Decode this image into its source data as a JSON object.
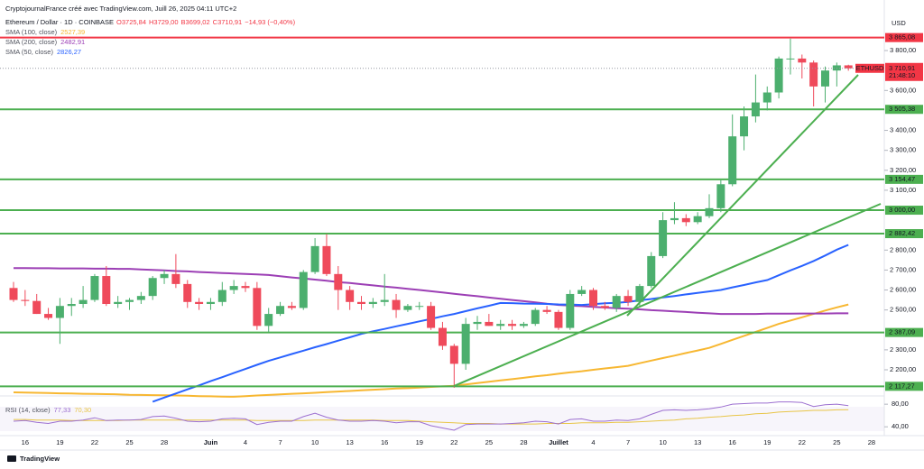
{
  "chart_data": {
    "type": "candlestick",
    "title": "CryptojournalFrance créé avec TradingView.com, Juill 26, 2025 04:11 UTC+2",
    "symbol": "Ethereum / Dollar · 1D · COINBASE",
    "ohlc_labels": [
      "O3725,84",
      "H3729,00",
      "B3699,02",
      "C3710,91",
      "−14,93 (−0,40%)"
    ],
    "currency": "USD",
    "footer": "TradingView",
    "up_color": "#4caf6e",
    "down_color": "#ef4a5b",
    "categories": [
      null,
      "16",
      null,
      null,
      "19",
      null,
      null,
      "22",
      null,
      null,
      "25",
      null,
      null,
      "28",
      null,
      null,
      null,
      "Juin",
      null,
      null,
      "4",
      null,
      null,
      "7",
      null,
      null,
      "10",
      null,
      null,
      "13",
      null,
      null,
      "16",
      null,
      null,
      "19",
      null,
      null,
      "22",
      null,
      null,
      "25",
      null,
      null,
      "28",
      null,
      null,
      "Juillet",
      null,
      null,
      "4",
      null,
      null,
      "7",
      null,
      null,
      "10",
      null,
      null,
      "13",
      null,
      null,
      "16",
      null,
      null,
      "19",
      null,
      null,
      "22",
      null,
      null,
      "25",
      null,
      null,
      "28"
    ],
    "open": [
      2610,
      2550,
      2545,
      2480,
      2460,
      2520,
      2530,
      2550,
      2670,
      2530,
      2540,
      2550,
      2570,
      2660,
      2680,
      2630,
      2540,
      2530,
      2540,
      2600,
      2620,
      2610,
      2420,
      2480,
      2520,
      2510,
      2690,
      2820,
      2680,
      2600,
      2540,
      2530,
      2540,
      2550,
      2500,
      2520,
      2520,
      2410,
      2320,
      2230,
      2430,
      2440,
      2420,
      2430,
      2420,
      2430,
      2500,
      2490,
      2410,
      2580,
      2600,
      2520,
      2510,
      2570,
      2540,
      2620,
      2770,
      2950,
      2960,
      2940,
      2970,
      3010,
      3130,
      3370,
      3470,
      3540,
      3590,
      3760,
      3760,
      3740,
      3620,
      3700,
      3725.84,
      null,
      null
    ],
    "high": [
      2640,
      2600,
      2580,
      2510,
      2560,
      2560,
      2620,
      2680,
      2720,
      2570,
      2560,
      2590,
      2670,
      2700,
      2780,
      2650,
      2560,
      2560,
      2640,
      2650,
      2640,
      2640,
      2510,
      2540,
      2540,
      2700,
      2860,
      2880,
      2720,
      2620,
      2570,
      2560,
      2680,
      2580,
      2530,
      2540,
      2540,
      2440,
      2330,
      2460,
      2470,
      2480,
      2450,
      2450,
      2440,
      2510,
      2520,
      2500,
      2600,
      2620,
      2610,
      2540,
      2580,
      2600,
      2630,
      2790,
      2990,
      3040,
      2980,
      2990,
      3080,
      3150,
      3480,
      3520,
      3680,
      3620,
      3770,
      3860,
      3780,
      3750,
      3720,
      3740,
      3729,
      null,
      null
    ],
    "low": [
      2540,
      2520,
      2480,
      2450,
      2330,
      2470,
      2510,
      2540,
      2520,
      2510,
      2500,
      2530,
      2550,
      2630,
      2610,
      2510,
      2500,
      2500,
      2520,
      2580,
      2590,
      2400,
      2390,
      2470,
      2500,
      2500,
      2680,
      2670,
      2500,
      2500,
      2500,
      2510,
      2520,
      2460,
      2490,
      2500,
      2400,
      2300,
      2110,
      2200,
      2400,
      2420,
      2400,
      2400,
      2410,
      2420,
      2480,
      2400,
      2400,
      2570,
      2500,
      2500,
      2490,
      2520,
      2520,
      2610,
      2760,
      2930,
      2920,
      2930,
      2960,
      2990,
      3120,
      3300,
      3440,
      3500,
      3560,
      3680,
      3660,
      3520,
      3540,
      3620,
      3699.02,
      null,
      null
    ],
    "close": [
      2550,
      2545,
      2480,
      2460,
      2520,
      2530,
      2550,
      2670,
      2530,
      2540,
      2550,
      2570,
      2660,
      2680,
      2630,
      2540,
      2530,
      2540,
      2600,
      2620,
      2610,
      2420,
      2480,
      2520,
      2510,
      2690,
      2820,
      2680,
      2600,
      2540,
      2530,
      2540,
      2550,
      2500,
      2520,
      2520,
      2410,
      2320,
      2230,
      2430,
      2440,
      2420,
      2430,
      2420,
      2430,
      2500,
      2490,
      2410,
      2580,
      2600,
      2520,
      2510,
      2570,
      2540,
      2620,
      2770,
      2950,
      2960,
      2940,
      2970,
      3010,
      3130,
      3370,
      3470,
      3540,
      3590,
      3760,
      3760,
      3740,
      3620,
      3700,
      3725.84,
      3710.91,
      null,
      null
    ],
    "price_tag": {
      "symbol": "ETHUSD",
      "label": "3 710,91",
      "countdown": "21:48:10",
      "color": "#f23645"
    },
    "series": [
      {
        "name": "SMA (100, close)",
        "color": "#f7b731",
        "last_label": "2527,39",
        "values": [
          2087,
          2086,
          2085,
          2084,
          2082,
          2081,
          2080,
          2079,
          2078,
          2077,
          2075,
          2074,
          2073,
          2072,
          2071,
          2070,
          2068,
          2067,
          2066,
          2065,
          2068,
          2071,
          2074,
          2077,
          2080,
          2082,
          2085,
          2088,
          2091,
          2094,
          2097,
          2100,
          2103,
          2106,
          2108,
          2111,
          2114,
          2117,
          2120,
          2127,
          2133,
          2140,
          2147,
          2153,
          2160,
          2167,
          2173,
          2180,
          2187,
          2193,
          2200,
          2207,
          2213,
          2220,
          2233,
          2246,
          2259,
          2271,
          2284,
          2297,
          2310,
          2330,
          2350,
          2370,
          2390,
          2410,
          2430,
          2447,
          2463,
          2480,
          2497,
          2513,
          2527.39,
          null,
          null
        ]
      },
      {
        "name": "SMA (200, close)",
        "color": "#9c3fb5",
        "last_label": "2482,91",
        "values": [
          2710,
          2710,
          2709,
          2709,
          2708,
          2708,
          2708,
          2707,
          2707,
          2706,
          2706,
          2703,
          2701,
          2698,
          2695,
          2693,
          2690,
          2688,
          2685,
          2683,
          2680,
          2678,
          2675,
          2669,
          2663,
          2658,
          2652,
          2646,
          2640,
          2635,
          2629,
          2623,
          2617,
          2612,
          2606,
          2600,
          2594,
          2588,
          2581,
          2575,
          2569,
          2562,
          2556,
          2550,
          2544,
          2538,
          2531,
          2525,
          2522,
          2519,
          2515,
          2512,
          2509,
          2506,
          2503,
          2499,
          2496,
          2493,
          2490,
          2486,
          2483,
          2480,
          2480,
          2480,
          2480,
          2481,
          2481,
          2481,
          2482,
          2482,
          2482,
          2483,
          2482.91,
          null,
          null
        ]
      },
      {
        "name": "SMA (50, close)",
        "color": "#2962ff",
        "last_label": "2826,27",
        "values": [
          null,
          null,
          null,
          null,
          null,
          null,
          null,
          null,
          null,
          null,
          null,
          null,
          2040,
          2061,
          2081,
          2102,
          2122,
          2143,
          2163,
          2184,
          2204,
          2225,
          2245,
          2262,
          2279,
          2296,
          2313,
          2329,
          2346,
          2363,
          2380,
          2393,
          2405,
          2418,
          2430,
          2443,
          2455,
          2468,
          2480,
          2494,
          2508,
          2521,
          2535,
          2534,
          2532,
          2531,
          2530,
          2528,
          2527,
          2525,
          2529,
          2533,
          2536,
          2540,
          2548,
          2555,
          2563,
          2570,
          2578,
          2585,
          2593,
          2600,
          2613,
          2625,
          2638,
          2650,
          2674,
          2698,
          2721,
          2745,
          2773,
          2802,
          2826.27,
          null,
          null
        ]
      }
    ],
    "levels": [
      {
        "value": 3865.08,
        "label": "3 865,08",
        "color": "#f23645"
      },
      {
        "value": 3505.38,
        "label": "3 505,38",
        "color": "#4caf50"
      },
      {
        "value": 3154.47,
        "label": "3 154,47",
        "color": "#4caf50"
      },
      {
        "value": 3000,
        "label": "3 000,00",
        "color": "#4caf50"
      },
      {
        "value": 2882.42,
        "label": "2 882,42",
        "color": "#4caf50"
      },
      {
        "value": 2387.09,
        "label": "2 387,09",
        "color": "#4caf50"
      },
      {
        "value": 2117.27,
        "label": "2 117,27",
        "color": "#4caf50"
      }
    ],
    "ylim": [
      2078,
      3963
    ],
    "yticks": [
      {
        "value": 3800,
        "label": "3 800,00"
      },
      {
        "value": 3600,
        "label": "3 600,00"
      },
      {
        "value": 3400,
        "label": "3 400,00"
      },
      {
        "value": 3300,
        "label": "3 300,00"
      },
      {
        "value": 3200,
        "label": "3 200,00"
      },
      {
        "value": 3100,
        "label": "3 100,00"
      },
      {
        "value": 2800,
        "label": "2 800,00"
      },
      {
        "value": 2700,
        "label": "2 700,00"
      },
      {
        "value": 2600,
        "label": "2 600,00"
      },
      {
        "value": 2500,
        "label": "2 500,00"
      },
      {
        "value": 2300,
        "label": "2 300,00"
      },
      {
        "value": 2200,
        "label": "2 200,00"
      }
    ],
    "rsi": {
      "name": "RSI (14, close)",
      "color": "#9c6fd0",
      "last_label": "77,33",
      "values": [
        50,
        51,
        48,
        46,
        50,
        50,
        52,
        56,
        51,
        52,
        52,
        53,
        58,
        59,
        55,
        50,
        49,
        50,
        54,
        55,
        54,
        44,
        48,
        50,
        50,
        58,
        64,
        57,
        52,
        50,
        50,
        51,
        50,
        47,
        49,
        49,
        42,
        38,
        34,
        44,
        45,
        45,
        45,
        46,
        47,
        50,
        49,
        45,
        53,
        54,
        50,
        50,
        52,
        51,
        54,
        62,
        69,
        70,
        69,
        70,
        72,
        75,
        80,
        81,
        82,
        82,
        84,
        84,
        83,
        76,
        79,
        80,
        77.33,
        null,
        null
      ],
      "ma": {
        "color": "#e8c547",
        "last_label": "70,30",
        "values": [
          53,
          53,
          52,
          52,
          52,
          51,
          51,
          51,
          51,
          51,
          52,
          52,
          52,
          52,
          52,
          52,
          52,
          52,
          52,
          52,
          52,
          51,
          51,
          51,
          51,
          51,
          52,
          52,
          52,
          52,
          52,
          52,
          51,
          51,
          51,
          50,
          49,
          48,
          47,
          46,
          46,
          46,
          45,
          45,
          45,
          45,
          46,
          46,
          46,
          47,
          47,
          47,
          48,
          48,
          49,
          50,
          51,
          52,
          54,
          55,
          57,
          58,
          60,
          61,
          63,
          64,
          66,
          67,
          68,
          69,
          69,
          70,
          70.3,
          null,
          null
        ]
      },
      "ylim": [
        26,
        93
      ],
      "yticks": [
        {
          "value": 80,
          "label": "80,00"
        },
        {
          "value": 40,
          "label": "40,00"
        }
      ]
    }
  }
}
